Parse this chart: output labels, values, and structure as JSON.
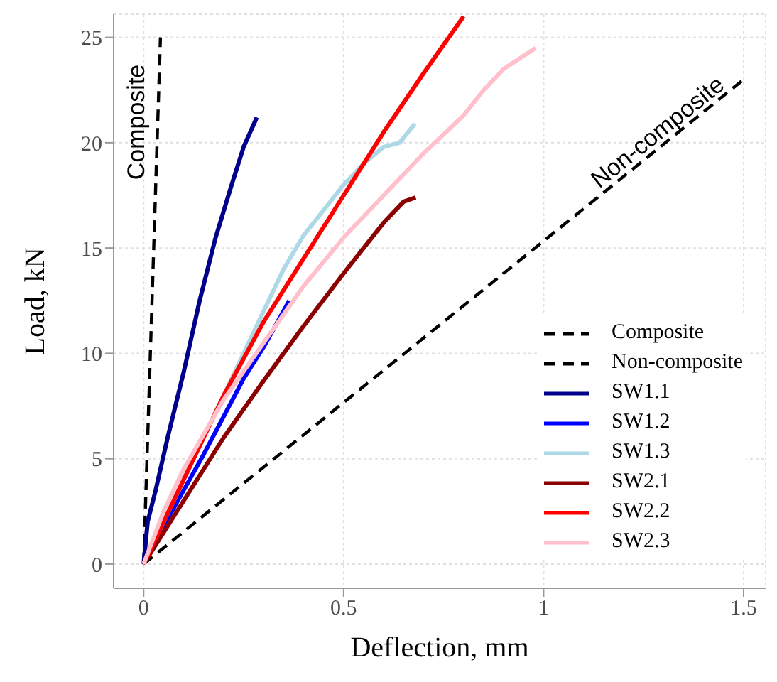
{
  "chart_data": {
    "type": "line",
    "xlabel": "Deflection, mm",
    "ylabel": "Load, kN",
    "xlim": [
      -0.075,
      1.555
    ],
    "ylim": [
      -1.15,
      26.1
    ],
    "xticks": [
      0,
      0.5,
      1,
      1.5
    ],
    "yticks": [
      0,
      5,
      10,
      15,
      20,
      25
    ],
    "grid": true,
    "legend": "bottom right",
    "marker": "none",
    "annotations": [
      "Composite",
      "Non-composite"
    ],
    "series": [
      {
        "name": "Composite",
        "color": "#000000",
        "line_style": "dashed",
        "x": [
          0,
          0.042
        ],
        "values": [
          0,
          25
        ]
      },
      {
        "name": "Non-composite",
        "color": "#000000",
        "line_style": "dashed",
        "x": [
          0,
          1.5
        ],
        "values": [
          0,
          23
        ]
      },
      {
        "name": "SW1.1",
        "color": "#00008b",
        "line_style": "solid",
        "x": [
          0,
          0.01,
          0.03,
          0.06,
          0.1,
          0.14,
          0.18,
          0.22,
          0.25,
          0.283
        ],
        "values": [
          0,
          2,
          3.5,
          6,
          9.1,
          12.5,
          15.5,
          18,
          19.8,
          21.2
        ]
      },
      {
        "name": "SW1.2",
        "color": "#0000ff",
        "line_style": "solid",
        "x": [
          0,
          0.05,
          0.1,
          0.15,
          0.2,
          0.25,
          0.3,
          0.364
        ],
        "values": [
          0,
          1.8,
          3.5,
          5.2,
          7,
          8.8,
          10.3,
          12.5
        ]
      },
      {
        "name": "SW1.3",
        "color": "#add8e6",
        "line_style": "solid",
        "x": [
          0,
          0.1,
          0.3,
          0.35,
          0.4,
          0.45,
          0.5,
          0.55,
          0.6,
          0.64,
          0.678
        ],
        "values": [
          0,
          4,
          12,
          14,
          15.6,
          16.8,
          18,
          19,
          19.8,
          20,
          20.9
        ]
      },
      {
        "name": "SW2.1",
        "color": "#8b0000",
        "line_style": "solid",
        "x": [
          0,
          0.05,
          0.1,
          0.2,
          0.3,
          0.4,
          0.5,
          0.55,
          0.6,
          0.65,
          0.68
        ],
        "values": [
          0,
          1.5,
          3,
          6,
          8.7,
          11.3,
          13.8,
          15,
          16.2,
          17.2,
          17.4
        ]
      },
      {
        "name": "SW2.2",
        "color": "#ff0000",
        "line_style": "solid",
        "x": [
          0,
          0.05,
          0.1,
          0.2,
          0.3,
          0.4,
          0.5,
          0.6,
          0.7,
          0.8
        ],
        "values": [
          0,
          2,
          4,
          8,
          11.5,
          14.5,
          17.5,
          20.5,
          23.3,
          26
        ]
      },
      {
        "name": "SW2.3",
        "color": "#ffc0cb",
        "line_style": "solid",
        "x": [
          0,
          0.05,
          0.1,
          0.2,
          0.3,
          0.4,
          0.5,
          0.6,
          0.7,
          0.8,
          0.85,
          0.9,
          0.98
        ],
        "values": [
          0,
          2.5,
          4.5,
          7.8,
          10.5,
          13.2,
          15.5,
          17.5,
          19.5,
          21.3,
          22.5,
          23.5,
          24.5
        ]
      }
    ]
  }
}
